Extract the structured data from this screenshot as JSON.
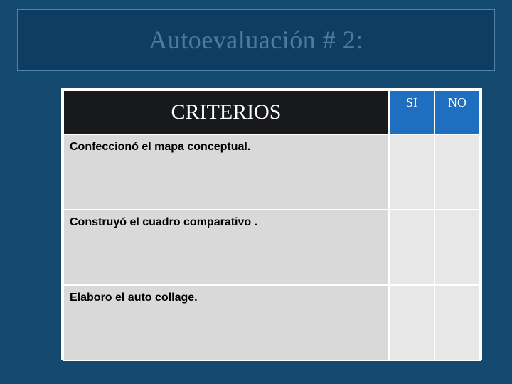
{
  "colors": {
    "slide_bg": "#144a6f",
    "title_box_bg": "#0f3d61",
    "title_box_border": "#4d82ad",
    "title_text": "#4f7aa0",
    "table_border": "#ffffff",
    "header_criterios_bg": "#18191c",
    "header_criterios_text": "#ffffff",
    "header_si_bg": "#1e6fbf",
    "header_no_bg": "#1e6fbf",
    "header_sino_text": "#ffffff",
    "row_label_bg": "#d9d9d9",
    "row_cell_bg": "#e7e7e7"
  },
  "title": "Autoevaluación # 2:",
  "table": {
    "columns": {
      "criterios": "CRITERIOS",
      "si": "SI",
      "no": "NO"
    },
    "rows": [
      {
        "label": "Confeccionó el mapa conceptual."
      },
      {
        "label": "Construyó el cuadro comparativo ."
      },
      {
        "label": " Elaboro el  auto collage."
      }
    ]
  }
}
